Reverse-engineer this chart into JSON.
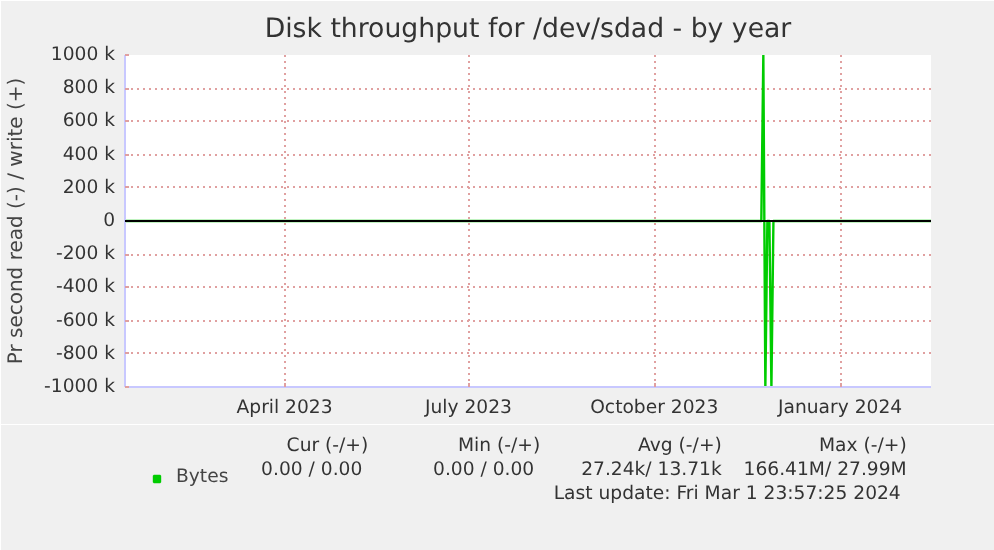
{
  "chart_data": {
    "type": "line",
    "title": "Disk throughput for /dev/sdad - by year",
    "ylabel": "Pr second read (-) / write (+)",
    "x": [
      "2023-01-27",
      "2023-12-08",
      "2023-12-09",
      "2023-12-09T12:00",
      "2023-12-10",
      "2023-12-11",
      "2023-12-12",
      "2023-12-13",
      "2023-12-14",
      "2024-03-01"
    ],
    "series": [
      {
        "name": "Bytes",
        "color": "#00cc00",
        "values": [
          0,
          0,
          1000,
          0,
          -1000,
          0,
          0,
          -1000,
          0,
          0
        ]
      }
    ],
    "xlim": [
      "2023-01-27",
      "2024-03-01"
    ],
    "xticks": [
      {
        "value": "2023-04-16",
        "label": "April 2023"
      },
      {
        "value": "2023-07-16",
        "label": "July 2023"
      },
      {
        "value": "2023-10-16",
        "label": "October 2023"
      },
      {
        "value": "2024-01-16",
        "label": "January 2024"
      }
    ],
    "ylim": [
      -1000,
      1000
    ],
    "yticks": [
      {
        "value": -1000,
        "label": "-1000 k"
      },
      {
        "value": -800,
        "label": "-800 k"
      },
      {
        "value": -600,
        "label": "-600 k"
      },
      {
        "value": -400,
        "label": "-400 k"
      },
      {
        "value": -200,
        "label": "-200 k"
      },
      {
        "value": 0,
        "label": "0"
      },
      {
        "value": 200,
        "label": "200 k"
      },
      {
        "value": 400,
        "label": "400 k"
      },
      {
        "value": 600,
        "label": "600 k"
      },
      {
        "value": 800,
        "label": "800 k"
      },
      {
        "value": 1000,
        "label": "1000 k"
      }
    ],
    "ref_lines": [
      {
        "axis": "y",
        "value": 0,
        "label": null,
        "color": "#000000"
      }
    ],
    "grid": true,
    "legend": "bottom",
    "marker": "none",
    "line_style": "solid",
    "annotations": [
      "Cur (-/+)",
      "Min (-/+)",
      "Avg (-/+)",
      "Max (-/+)",
      "0.00 /  0.00",
      "0.00 /  0.00",
      "27.24k/ 13.71k",
      "166.41M/ 27.99M",
      "Last update: Fri Mar  1 23:57:25 2024"
    ]
  }
}
